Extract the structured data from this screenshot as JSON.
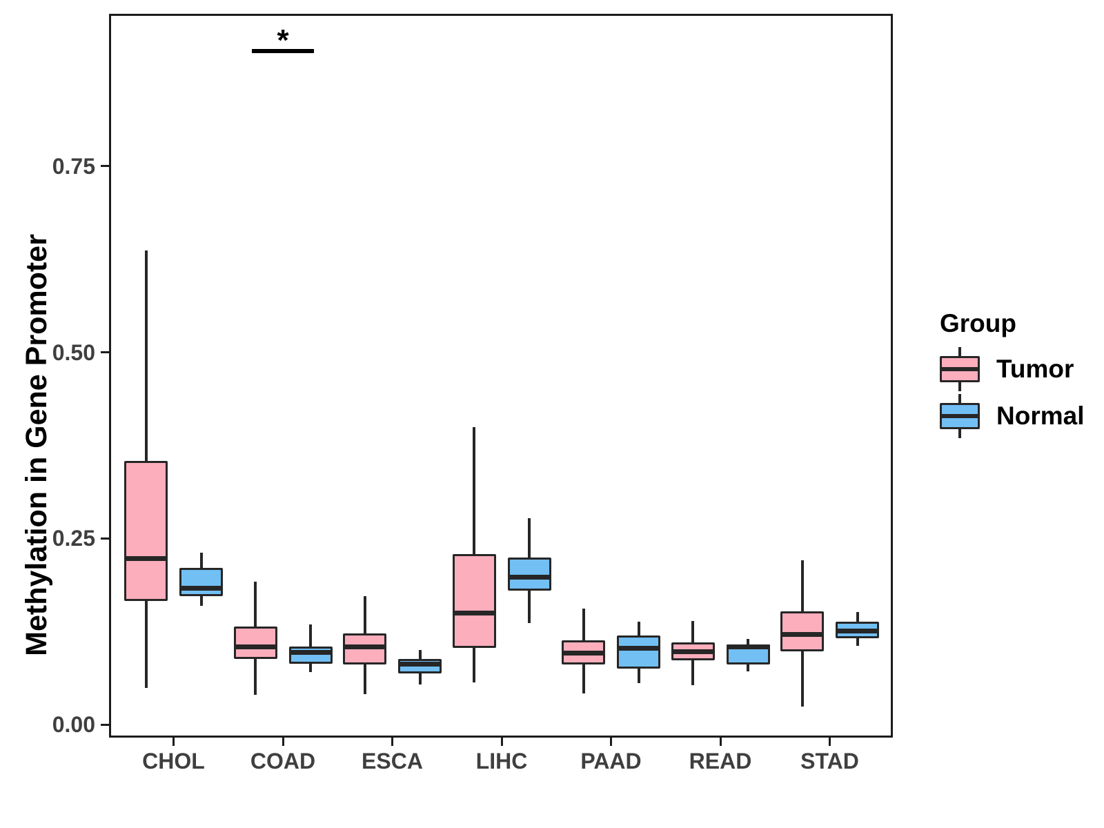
{
  "chart_data": {
    "type": "boxplot",
    "title": "",
    "xlabel": "",
    "ylabel": "Methylation in Gene Promoter",
    "ylim": [
      0,
      0.95
    ],
    "yticks": [
      0.0,
      0.25,
      0.5,
      0.75
    ],
    "ytick_labels": [
      "0.00",
      "0.25",
      "0.50",
      "0.75"
    ],
    "categories": [
      "CHOL",
      "COAD",
      "ESCA",
      "LIHC",
      "PAAD",
      "READ",
      "STAD"
    ],
    "grid": "off",
    "legend": {
      "title": "Group",
      "position": "right"
    },
    "groups": [
      {
        "name": "Tumor",
        "color": "#FCAEBD"
      },
      {
        "name": "Normal",
        "color": "#72BFF4"
      }
    ],
    "series": [
      {
        "name": "Tumor",
        "boxes": [
          {
            "category": "CHOL",
            "min": 0.049,
            "q1": 0.166,
            "median": 0.223,
            "q3": 0.354,
            "max": 0.637
          },
          {
            "category": "COAD",
            "min": 0.04,
            "q1": 0.088,
            "median": 0.104,
            "q3": 0.132,
            "max": 0.192
          },
          {
            "category": "ESCA",
            "min": 0.041,
            "q1": 0.081,
            "median": 0.104,
            "q3": 0.122,
            "max": 0.172
          },
          {
            "category": "LIHC",
            "min": 0.057,
            "q1": 0.103,
            "median": 0.15,
            "q3": 0.229,
            "max": 0.4
          },
          {
            "category": "PAAD",
            "min": 0.042,
            "q1": 0.081,
            "median": 0.096,
            "q3": 0.113,
            "max": 0.156
          },
          {
            "category": "READ",
            "min": 0.053,
            "q1": 0.086,
            "median": 0.098,
            "q3": 0.11,
            "max": 0.139
          },
          {
            "category": "STAD",
            "min": 0.024,
            "q1": 0.098,
            "median": 0.121,
            "q3": 0.152,
            "max": 0.221
          }
        ]
      },
      {
        "name": "Normal",
        "boxes": [
          {
            "category": "CHOL",
            "min": 0.159,
            "q1": 0.172,
            "median": 0.183,
            "q3": 0.21,
            "max": 0.231
          },
          {
            "category": "COAD",
            "min": 0.07,
            "q1": 0.082,
            "median": 0.097,
            "q3": 0.105,
            "max": 0.134
          },
          {
            "category": "ESCA",
            "min": 0.054,
            "q1": 0.069,
            "median": 0.081,
            "q3": 0.088,
            "max": 0.1
          },
          {
            "category": "LIHC",
            "min": 0.136,
            "q1": 0.18,
            "median": 0.198,
            "q3": 0.224,
            "max": 0.277
          },
          {
            "category": "PAAD",
            "min": 0.056,
            "q1": 0.075,
            "median": 0.102,
            "q3": 0.12,
            "max": 0.138
          },
          {
            "category": "READ",
            "min": 0.071,
            "q1": 0.081,
            "median": 0.104,
            "q3": 0.108,
            "max": 0.115
          },
          {
            "category": "STAD",
            "min": 0.106,
            "q1": 0.116,
            "median": 0.126,
            "q3": 0.138,
            "max": 0.151
          }
        ]
      }
    ],
    "significance": {
      "category": "COAD",
      "label": "*",
      "bar_value": 0.905
    },
    "colors": {
      "box_outline": "#262626",
      "axis_line": "#1c1c1c",
      "tick_text": "#3f3f3f",
      "title_text": "#000000"
    }
  }
}
